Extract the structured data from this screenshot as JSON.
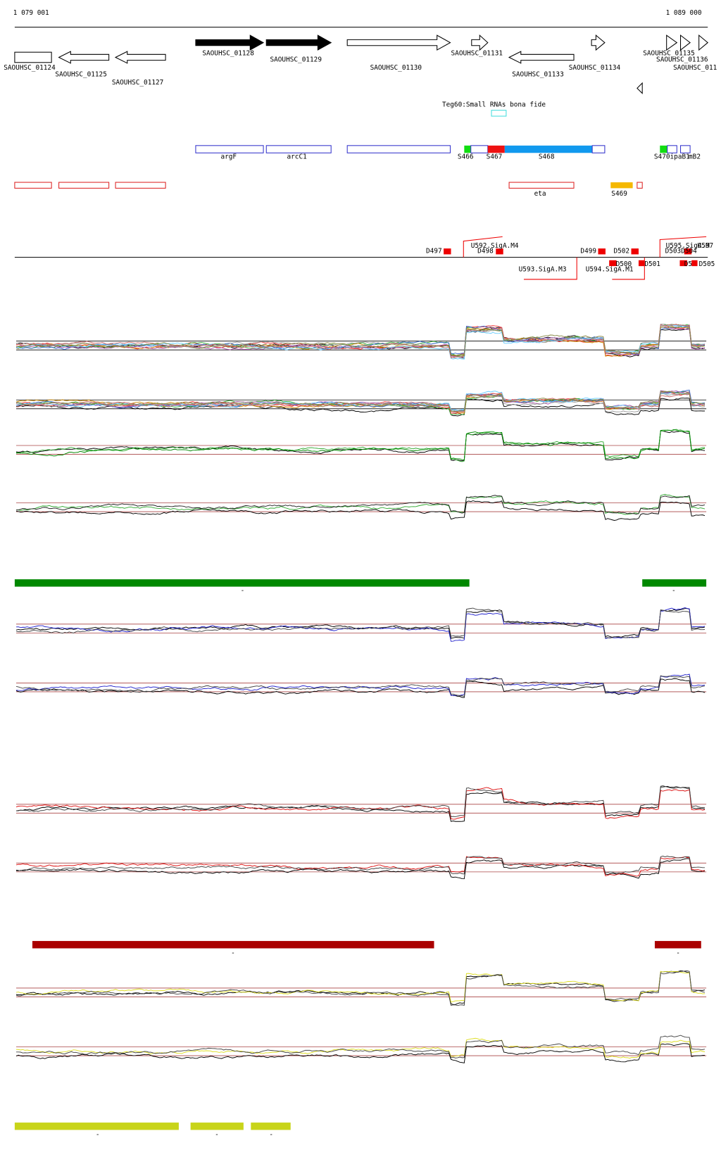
{
  "ruler": {
    "start": "1 079 001",
    "end": "1 089 000"
  },
  "genes": [
    "SAOUHSC_01124",
    "SAOUHSC_01125",
    "SAOUHSC_01127",
    "SAOUHSC_01128",
    "SAOUHSC_01129",
    "SAOUHSC_01130",
    "SAOUHSC_01131",
    "SAOUHSC_01133",
    "SAOUHSC_01134",
    "SAOUHSC_01135",
    "SAOUHSC_01136",
    "SAOUHSC_011"
  ],
  "small_rna": "Teg60:Small RNAs bona fide",
  "features": [
    "argF",
    "arcC1",
    "S466",
    "S467",
    "S468",
    "S470ipaB1",
    "mB2"
  ],
  "regions": [
    "eta",
    "S469"
  ],
  "sites": [
    "D497",
    "U592.SigA.M4",
    "D498",
    "D499",
    "D502",
    "U595.SigA.M",
    "U597",
    "D503D504",
    "U593.SigA.M3",
    "U594.SigA.M1",
    "D500",
    "D501",
    "D5",
    "D505"
  ],
  "bar_labels": [
    "-",
    "-",
    "-",
    "-",
    "-",
    "-",
    "-"
  ]
}
